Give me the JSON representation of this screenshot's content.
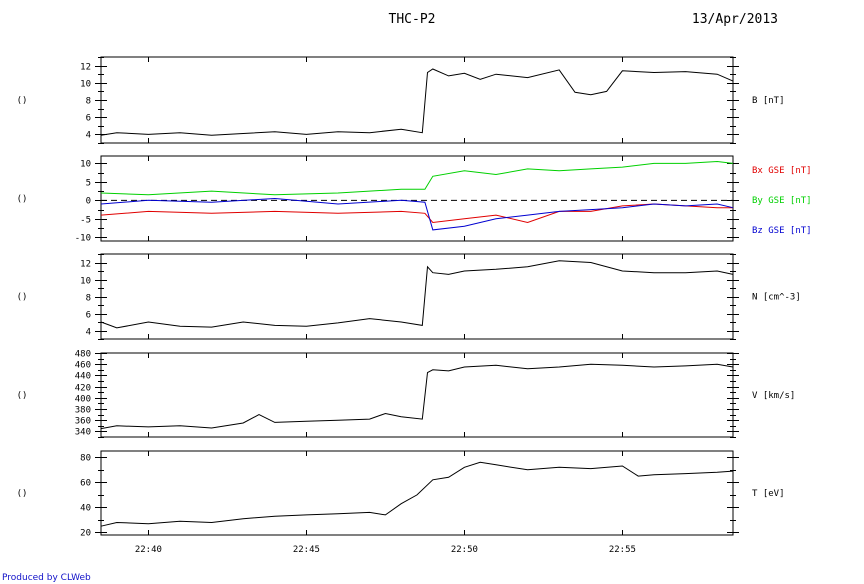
{
  "header": {
    "title": "THC-P2",
    "date": "13/Apr/2013"
  },
  "footer": {
    "credit": "Produced by CLWeb"
  },
  "colors": {
    "axes": "#000000",
    "bx": "#e00000",
    "by": "#00d000",
    "bz": "#0000d0",
    "credit": "#1010c8"
  },
  "chart_data": [
    {
      "type": "line",
      "panel_key": "B",
      "ylabel": "B [nT]",
      "left_label": "()",
      "ylim": [
        3,
        13
      ],
      "yticks": [
        4,
        6,
        8,
        10,
        12
      ],
      "x_range": [
        "22:38:30",
        "22:58:30"
      ],
      "xticks": [
        "22:40",
        "22:45",
        "22:50",
        "22:55"
      ],
      "series": [
        {
          "color": "#000000",
          "x": [
            "22:38:30",
            "22:39:00",
            "22:40:00",
            "22:41:00",
            "22:42:00",
            "22:43:00",
            "22:44:00",
            "22:45:00",
            "22:46:00",
            "22:47:00",
            "22:48:00",
            "22:48:40",
            "22:48:50",
            "22:49:00",
            "22:49:30",
            "22:50:00",
            "22:50:30",
            "22:51:00",
            "22:52:00",
            "22:53:00",
            "22:53:30",
            "22:54:00",
            "22:54:30",
            "22:55:00",
            "22:56:00",
            "22:57:00",
            "22:58:00",
            "22:58:30"
          ],
          "y": [
            3.9,
            4.2,
            4.0,
            4.2,
            3.9,
            4.1,
            4.3,
            4.0,
            4.3,
            4.2,
            4.6,
            4.2,
            11.2,
            11.6,
            10.8,
            11.1,
            10.4,
            11.0,
            10.6,
            11.5,
            8.9,
            8.6,
            9.0,
            11.4,
            11.2,
            11.3,
            11.0,
            10.2
          ]
        }
      ]
    },
    {
      "type": "line",
      "panel_key": "Bxyz",
      "left_label": "()",
      "ylim": [
        -11,
        12
      ],
      "yticks": [
        -10,
        -5,
        0,
        5,
        10
      ],
      "x_range": [
        "22:38:30",
        "22:58:30"
      ],
      "xticks": [
        "22:40",
        "22:45",
        "22:50",
        "22:55"
      ],
      "zero_line": true,
      "series": [
        {
          "name": "Bx GSE [nT]",
          "color": "#e00000",
          "x": [
            "22:38:30",
            "22:40:00",
            "22:42:00",
            "22:44:00",
            "22:46:00",
            "22:48:00",
            "22:48:45",
            "22:49:00",
            "22:50:00",
            "22:51:00",
            "22:52:00",
            "22:53:00",
            "22:54:00",
            "22:55:00",
            "22:56:00",
            "22:57:00",
            "22:58:00",
            "22:58:30"
          ],
          "y": [
            -4,
            -3,
            -3.5,
            -3,
            -3.5,
            -3,
            -3.5,
            -6,
            -5,
            -4,
            -6,
            -3,
            -3,
            -1.5,
            -1,
            -1.5,
            -2,
            -2
          ]
        },
        {
          "name": "By GSE [nT]",
          "color": "#00d000",
          "x": [
            "22:38:30",
            "22:40:00",
            "22:42:00",
            "22:44:00",
            "22:46:00",
            "22:48:00",
            "22:48:45",
            "22:49:00",
            "22:50:00",
            "22:51:00",
            "22:52:00",
            "22:53:00",
            "22:54:00",
            "22:55:00",
            "22:56:00",
            "22:57:00",
            "22:58:00",
            "22:58:30"
          ],
          "y": [
            2,
            1.5,
            2.5,
            1.5,
            2,
            3,
            3,
            6.5,
            8,
            7,
            8.5,
            8,
            8.5,
            9,
            10,
            10,
            10.5,
            10
          ]
        },
        {
          "name": "Bz GSE [nT]",
          "color": "#0000d0",
          "x": [
            "22:38:30",
            "22:40:00",
            "22:42:00",
            "22:44:00",
            "22:46:00",
            "22:48:00",
            "22:48:45",
            "22:49:00",
            "22:50:00",
            "22:51:00",
            "22:52:00",
            "22:53:00",
            "22:54:00",
            "22:55:00",
            "22:56:00",
            "22:57:00",
            "22:58:00",
            "22:58:30"
          ],
          "y": [
            -1,
            0,
            -0.5,
            0.5,
            -1,
            0,
            -0.5,
            -8,
            -7,
            -5,
            -4,
            -3,
            -2.5,
            -2,
            -1,
            -1.5,
            -1,
            -2
          ]
        }
      ]
    },
    {
      "type": "line",
      "panel_key": "N",
      "ylabel": "N [cm^-3]",
      "left_label": "()",
      "ylim": [
        3,
        13
      ],
      "yticks": [
        4,
        6,
        8,
        10,
        12
      ],
      "x_range": [
        "22:38:30",
        "22:58:30"
      ],
      "xticks": [
        "22:40",
        "22:45",
        "22:50",
        "22:55"
      ],
      "series": [
        {
          "color": "#000000",
          "x": [
            "22:38:30",
            "22:39:00",
            "22:40:00",
            "22:41:00",
            "22:42:00",
            "22:43:00",
            "22:44:00",
            "22:45:00",
            "22:46:00",
            "22:47:00",
            "22:48:00",
            "22:48:40",
            "22:48:50",
            "22:49:00",
            "22:49:30",
            "22:50:00",
            "22:51:00",
            "22:52:00",
            "22:53:00",
            "22:54:00",
            "22:55:00",
            "22:56:00",
            "22:57:00",
            "22:58:00",
            "22:58:30"
          ],
          "y": [
            5.0,
            4.3,
            5.0,
            4.5,
            4.4,
            5.0,
            4.6,
            4.5,
            4.9,
            5.4,
            5.0,
            4.6,
            11.5,
            10.8,
            10.6,
            11.0,
            11.2,
            11.5,
            12.2,
            12.0,
            11.0,
            10.8,
            10.8,
            11.0,
            10.6
          ]
        }
      ]
    },
    {
      "type": "line",
      "panel_key": "V",
      "ylabel": "V [km/s]",
      "left_label": "()",
      "ylim": [
        330,
        480
      ],
      "yticks": [
        340,
        360,
        380,
        400,
        420,
        440,
        460,
        480
      ],
      "x_range": [
        "22:38:30",
        "22:58:30"
      ],
      "xticks": [
        "22:40",
        "22:45",
        "22:50",
        "22:55"
      ],
      "series": [
        {
          "color": "#000000",
          "x": [
            "22:38:30",
            "22:39:00",
            "22:40:00",
            "22:41:00",
            "22:42:00",
            "22:43:00",
            "22:43:30",
            "22:44:00",
            "22:45:00",
            "22:46:00",
            "22:47:00",
            "22:47:30",
            "22:48:00",
            "22:48:40",
            "22:48:50",
            "22:49:00",
            "22:49:30",
            "22:50:00",
            "22:51:00",
            "22:52:00",
            "22:53:00",
            "22:54:00",
            "22:55:00",
            "22:56:00",
            "22:57:00",
            "22:58:00",
            "22:58:30"
          ],
          "y": [
            345,
            350,
            348,
            350,
            346,
            355,
            370,
            356,
            358,
            360,
            362,
            372,
            366,
            362,
            445,
            450,
            448,
            455,
            458,
            452,
            455,
            460,
            458,
            455,
            457,
            460,
            455
          ]
        }
      ]
    },
    {
      "type": "line",
      "panel_key": "T",
      "ylabel": "T [eV]",
      "left_label": "()",
      "ylim": [
        18,
        85
      ],
      "yticks": [
        20,
        40,
        60,
        80
      ],
      "x_range": [
        "22:38:30",
        "22:58:30"
      ],
      "xticks": [
        "22:40",
        "22:45",
        "22:50",
        "22:55"
      ],
      "series": [
        {
          "color": "#000000",
          "x": [
            "22:38:30",
            "22:39:00",
            "22:40:00",
            "22:41:00",
            "22:42:00",
            "22:43:00",
            "22:44:00",
            "22:45:00",
            "22:46:00",
            "22:47:00",
            "22:47:30",
            "22:48:00",
            "22:48:30",
            "22:49:00",
            "22:49:30",
            "22:50:00",
            "22:50:30",
            "22:51:00",
            "22:52:00",
            "22:53:00",
            "22:54:00",
            "22:55:00",
            "22:55:30",
            "22:56:00",
            "22:57:00",
            "22:58:00",
            "22:58:30"
          ],
          "y": [
            25,
            28,
            27,
            29,
            28,
            31,
            33,
            34,
            35,
            36,
            34,
            43,
            50,
            62,
            64,
            72,
            76,
            74,
            70,
            72,
            71,
            73,
            65,
            66,
            67,
            68,
            69
          ]
        }
      ]
    }
  ]
}
